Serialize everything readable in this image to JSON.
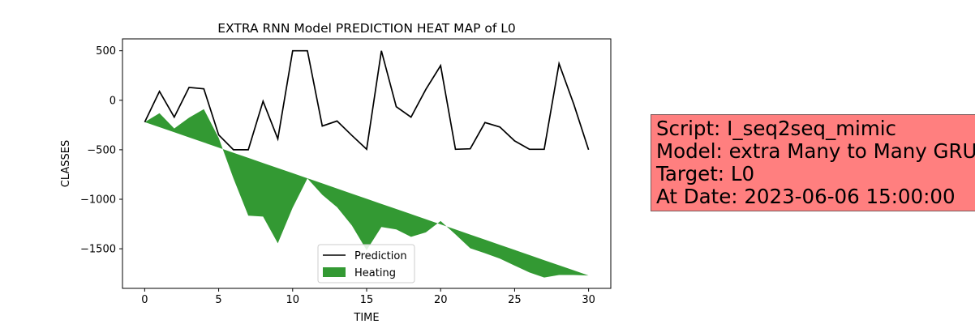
{
  "chart_data": {
    "type": "line",
    "title": "EXTRA RNN Model PREDICTION HEAT MAP of L0",
    "xlabel": "TIME",
    "ylabel": "CLASSES",
    "xlim": [
      -1.5,
      31.5
    ],
    "ylim": [
      -1900,
      620
    ],
    "xticks": [
      0,
      5,
      10,
      15,
      20,
      25,
      30
    ],
    "yticks": [
      500,
      0,
      -500,
      -1000,
      -1500
    ],
    "ytick_labels": [
      "500",
      "0",
      "−500",
      "−1000",
      "−1500"
    ],
    "grid": false,
    "legend_position": "lower-center",
    "x": [
      0,
      1,
      2,
      3,
      4,
      5,
      6,
      7,
      8,
      9,
      10,
      11,
      12,
      13,
      14,
      15,
      16,
      17,
      18,
      19,
      20,
      21,
      22,
      23,
      24,
      25,
      26,
      27,
      28,
      29,
      30
    ],
    "series": [
      {
        "name": "Prediction",
        "kind": "line",
        "color": "#000000",
        "values": [
          -220,
          90,
          -170,
          130,
          115,
          -350,
          -500,
          -500,
          -10,
          -390,
          500,
          500,
          -260,
          -210,
          -355,
          -495,
          500,
          -65,
          -170,
          110,
          350,
          -495,
          -490,
          -225,
          -270,
          -410,
          -495,
          -495,
          370,
          -40,
          -500
        ]
      },
      {
        "name": "Heating",
        "kind": "fill_between",
        "color": "#339933",
        "baseline_start": -220,
        "baseline_end": -1770,
        "values": [
          -220,
          -130,
          -285,
          -175,
          -90,
          -380,
          -790,
          -1165,
          -1175,
          -1445,
          -1085,
          -790,
          -955,
          -1080,
          -1265,
          -1515,
          -1280,
          -1305,
          -1380,
          -1335,
          -1220,
          -1355,
          -1495,
          -1545,
          -1600,
          -1670,
          -1740,
          -1790,
          -1765,
          -1765,
          -1770
        ]
      }
    ]
  },
  "info_box": {
    "line1": "Script: I_seq2seq_mimic",
    "line2": "Model: extra Many to Many GRU",
    "line3": "Target: L0",
    "line4": "At Date: 2023-06-06 15:00:00"
  }
}
